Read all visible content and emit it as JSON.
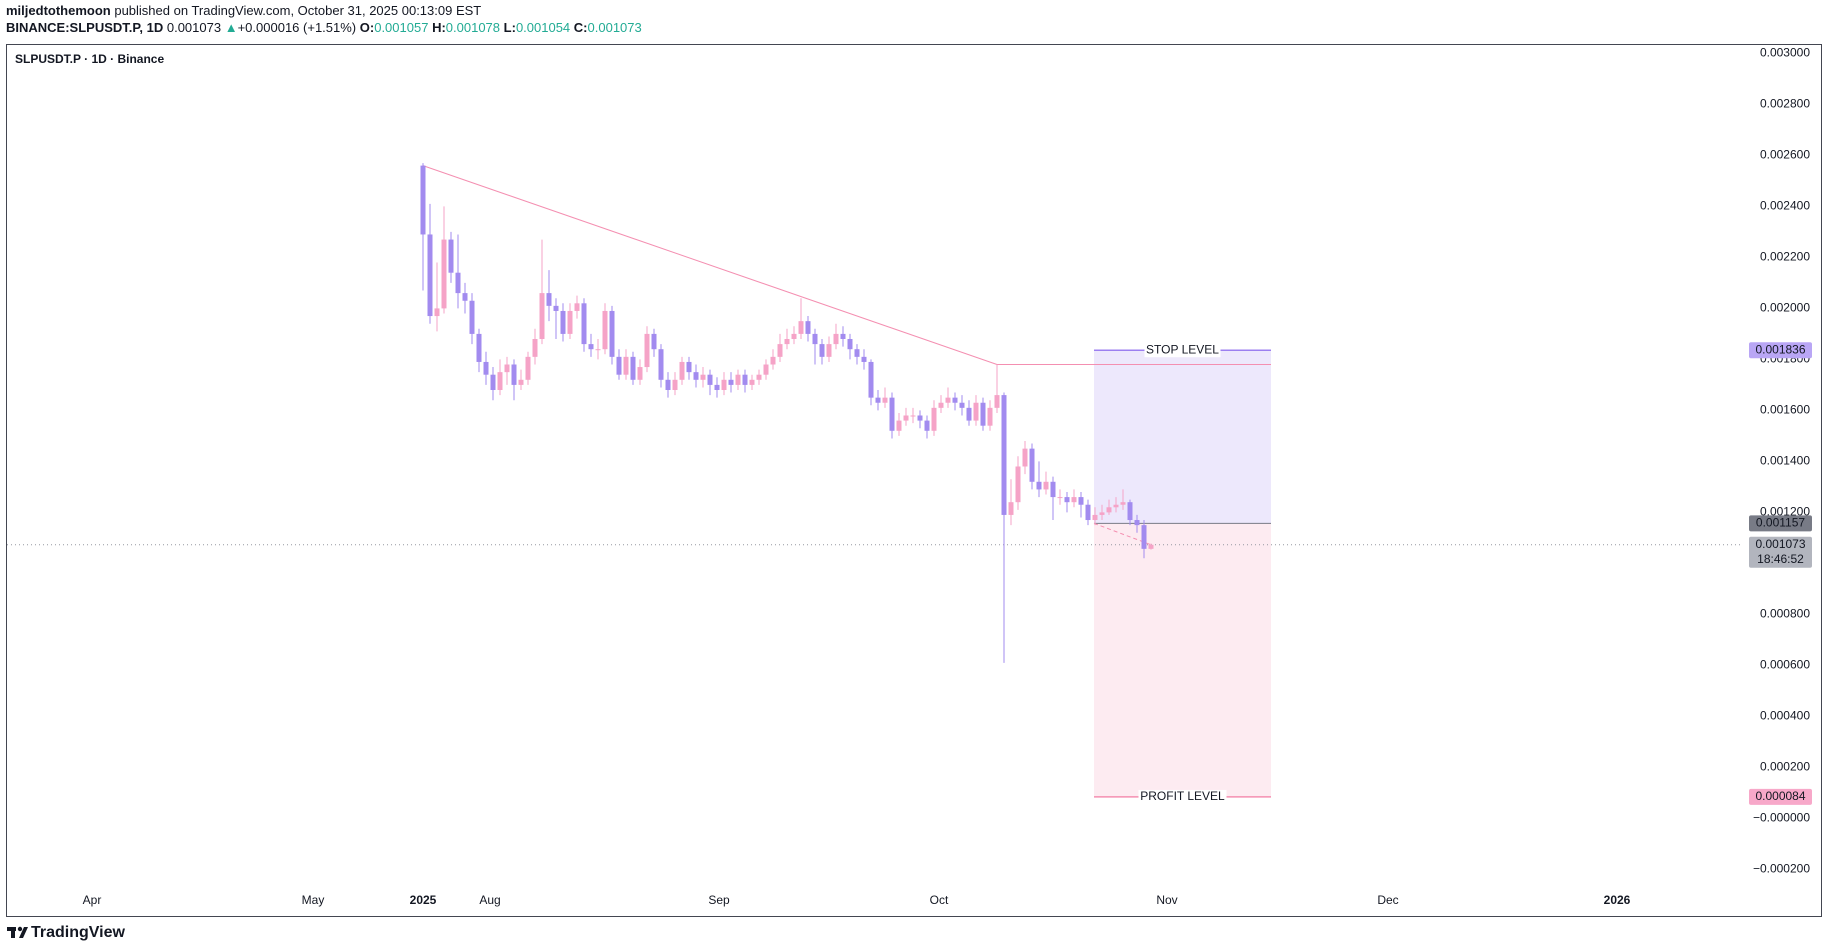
{
  "header": {
    "author": "miljedtothemoon",
    "published": "published on TradingView.com, October 31, 2025 00:13:09 EST",
    "symbol": "BINANCE:SLPUSDT.P, 1D",
    "last": "0.001073",
    "arrow": "▲",
    "change": "+0.000016 (+1.51%)",
    "o_label": "O:",
    "o": "0.001057",
    "h_label": "H:",
    "h": "0.001078",
    "l_label": "L:",
    "l": "0.001054",
    "c_label": "C:",
    "c": "0.001073"
  },
  "brand": "TradingView",
  "chart_data": {
    "type": "candlestick",
    "title": "SLPUSDT.P · 1D · Binance",
    "x_labels": [
      "Apr",
      "May",
      "2025",
      "Aug",
      "Sep",
      "Oct",
      "Nov",
      "Dec",
      "2026"
    ],
    "open": [
      0.00256,
      0.00229,
      0.00197,
      0.002,
      0.00227,
      0.00214,
      0.00206,
      0.00203,
      0.0019,
      0.00179,
      0.00174,
      0.00168,
      0.00175,
      0.00178,
      0.0017,
      0.00172,
      0.00181,
      0.00188,
      0.00206,
      0.00201,
      0.00199,
      0.0019,
      0.00199,
      0.00202,
      0.00186,
      0.00184,
      0.00184,
      0.00199,
      0.00181,
      0.00174,
      0.00181,
      0.00172,
      0.00177,
      0.0019,
      0.00184,
      0.00172,
      0.00168,
      0.00172,
      0.00179,
      0.00175,
      0.00172,
      0.00174,
      0.0017,
      0.00168,
      0.00172,
      0.0017,
      0.00174,
      0.0017,
      0.00172,
      0.00174,
      0.00178,
      0.00181,
      0.00186,
      0.00188,
      0.0019,
      0.00195,
      0.0019,
      0.00186,
      0.00181,
      0.00186,
      0.0019,
      0.00188,
      0.00184,
      0.00181,
      0.00179,
      0.00165,
      0.00163,
      0.00165,
      0.00152,
      0.00156,
      0.00158,
      0.00158,
      0.00156,
      0.00152,
      0.00161,
      0.00163,
      0.00165,
      0.00163,
      0.00161,
      0.00156,
      0.00163,
      0.00154,
      0.00161,
      0.00166,
      0.00119,
      0.00124,
      0.00138,
      0.00145,
      0.00132,
      0.00129,
      0.00132,
      0.00126,
      0.00126,
      0.00124,
      0.00126,
      0.00123,
      0.00117,
      0.00119,
      0.0012,
      0.00122,
      0.00123,
      0.00124,
      0.00117,
      0.00115,
      0.001057
    ],
    "high": [
      0.00257,
      0.00241,
      0.00218,
      0.0024,
      0.0023,
      0.00229,
      0.0021,
      0.00206,
      0.00192,
      0.00183,
      0.00177,
      0.0018,
      0.00181,
      0.0018,
      0.00176,
      0.00183,
      0.00192,
      0.00227,
      0.00215,
      0.00204,
      0.00202,
      0.00202,
      0.00205,
      0.00204,
      0.0019,
      0.00188,
      0.00202,
      0.00201,
      0.00184,
      0.00184,
      0.00183,
      0.0018,
      0.00193,
      0.00192,
      0.00186,
      0.00175,
      0.00175,
      0.00181,
      0.00181,
      0.00178,
      0.00177,
      0.00176,
      0.00173,
      0.00175,
      0.00175,
      0.00176,
      0.00176,
      0.00174,
      0.00176,
      0.0018,
      0.00184,
      0.0019,
      0.00192,
      0.00193,
      0.00204,
      0.00197,
      0.00192,
      0.00188,
      0.00189,
      0.00194,
      0.00193,
      0.0019,
      0.00186,
      0.00184,
      0.0018,
      0.00168,
      0.00169,
      0.00167,
      0.00159,
      0.00161,
      0.00161,
      0.0016,
      0.00158,
      0.00164,
      0.00166,
      0.00169,
      0.00167,
      0.00166,
      0.00164,
      0.00166,
      0.00165,
      0.00164,
      0.00178,
      0.00167,
      0.00133,
      0.00142,
      0.00148,
      0.00147,
      0.0014,
      0.00136,
      0.00134,
      0.00129,
      0.00128,
      0.00129,
      0.00128,
      0.00125,
      0.00122,
      0.00123,
      0.00125,
      0.00126,
      0.00129,
      0.00125,
      0.00119,
      0.00117,
      0.001078
    ],
    "low": [
      0.00207,
      0.00194,
      0.00191,
      0.00198,
      0.0021,
      0.002,
      0.00198,
      0.00186,
      0.00175,
      0.0017,
      0.00164,
      0.00166,
      0.0017,
      0.00164,
      0.00168,
      0.0017,
      0.00178,
      0.00186,
      0.00195,
      0.00188,
      0.00187,
      0.00188,
      0.00196,
      0.00183,
      0.00181,
      0.0018,
      0.00182,
      0.00178,
      0.00172,
      0.00172,
      0.0017,
      0.0017,
      0.00175,
      0.00181,
      0.00169,
      0.00165,
      0.00166,
      0.0017,
      0.00172,
      0.00169,
      0.00169,
      0.00166,
      0.00165,
      0.00166,
      0.00167,
      0.00168,
      0.00167,
      0.00168,
      0.0017,
      0.00172,
      0.00176,
      0.00179,
      0.00184,
      0.00186,
      0.00188,
      0.00187,
      0.00178,
      0.00178,
      0.00179,
      0.00184,
      0.00185,
      0.0018,
      0.00178,
      0.00176,
      0.00162,
      0.0016,
      0.00161,
      0.00149,
      0.0015,
      0.00154,
      0.00155,
      0.00153,
      0.00149,
      0.0015,
      0.00159,
      0.00161,
      0.0016,
      0.00158,
      0.00154,
      0.00154,
      0.00152,
      0.00152,
      0.00159,
      0.00061,
      0.00115,
      0.00121,
      0.00135,
      0.00129,
      0.00126,
      0.00127,
      0.00117,
      0.00123,
      0.0012,
      0.00122,
      0.00118,
      0.00115,
      0.00115,
      0.00117,
      0.00119,
      0.0012,
      0.00121,
      0.00115,
      0.00112,
      0.00102,
      0.001054
    ],
    "close": [
      0.00229,
      0.00197,
      0.002,
      0.00227,
      0.00214,
      0.00206,
      0.00203,
      0.0019,
      0.00179,
      0.00174,
      0.00168,
      0.00175,
      0.00178,
      0.0017,
      0.00172,
      0.00181,
      0.00188,
      0.00206,
      0.00201,
      0.00199,
      0.0019,
      0.00199,
      0.00202,
      0.00186,
      0.00184,
      0.00184,
      0.00199,
      0.00181,
      0.00174,
      0.00181,
      0.00172,
      0.00177,
      0.0019,
      0.00184,
      0.00172,
      0.00168,
      0.00172,
      0.00179,
      0.00175,
      0.00172,
      0.00174,
      0.0017,
      0.00168,
      0.00172,
      0.0017,
      0.00174,
      0.0017,
      0.00172,
      0.00174,
      0.00178,
      0.00181,
      0.00186,
      0.00188,
      0.0019,
      0.00195,
      0.0019,
      0.00186,
      0.00181,
      0.00186,
      0.0019,
      0.00188,
      0.00184,
      0.00181,
      0.00179,
      0.00165,
      0.00163,
      0.00165,
      0.00152,
      0.00156,
      0.00158,
      0.00158,
      0.00156,
      0.00152,
      0.00161,
      0.00163,
      0.00165,
      0.00163,
      0.00161,
      0.00156,
      0.00163,
      0.00154,
      0.00161,
      0.00166,
      0.00119,
      0.00124,
      0.00138,
      0.00145,
      0.00132,
      0.00129,
      0.00132,
      0.00126,
      0.00126,
      0.00124,
      0.00126,
      0.00123,
      0.00117,
      0.00119,
      0.0012,
      0.00122,
      0.00123,
      0.00124,
      0.00117,
      0.00115,
      0.001057,
      0.001073
    ],
    "up_color": "#f5a3c7",
    "down_color": "#a28bef",
    "ylim": [
      -0.000383,
      0.003037
    ],
    "yticks": [
      {
        "value": 0.003,
        "label": "0.003000"
      },
      {
        "value": 0.0028,
        "label": "0.002800"
      },
      {
        "value": 0.0026,
        "label": "0.002600"
      },
      {
        "value": 0.0024,
        "label": "0.002400"
      },
      {
        "value": 0.0022,
        "label": "0.002200"
      },
      {
        "value": 0.002,
        "label": "0.002000"
      },
      {
        "value": 0.0018,
        "label": "0.001800"
      },
      {
        "value": 0.0016,
        "label": "0.001600"
      },
      {
        "value": 0.0014,
        "label": "0.001400"
      },
      {
        "value": 0.0012,
        "label": "0.001200"
      },
      {
        "value": 0.001,
        "label": "0.001000"
      },
      {
        "value": 0.0008,
        "label": "0.000800"
      },
      {
        "value": 0.0006,
        "label": "0.000600"
      },
      {
        "value": 0.0004,
        "label": "0.000400"
      },
      {
        "value": 0.0002,
        "label": "0.000200"
      },
      {
        "value": 0,
        "label": "−0.000000"
      },
      {
        "value": -0.0002,
        "label": "−0.000200"
      }
    ],
    "trend_line": {
      "from": 0.00256,
      "to": 0.00178,
      "color": "#f48fb1"
    },
    "last_price": 0.001073,
    "countdown": "18:46:52",
    "position": {
      "stop": 0.001836,
      "entry": 0.001157,
      "profit": 8.4e-05,
      "stop_label": "STOP LEVEL",
      "profit_label": "PROFIT LEVEL",
      "stop_color": "#9c7ff0",
      "profit_color": "#f48fb1"
    },
    "grid": false
  }
}
